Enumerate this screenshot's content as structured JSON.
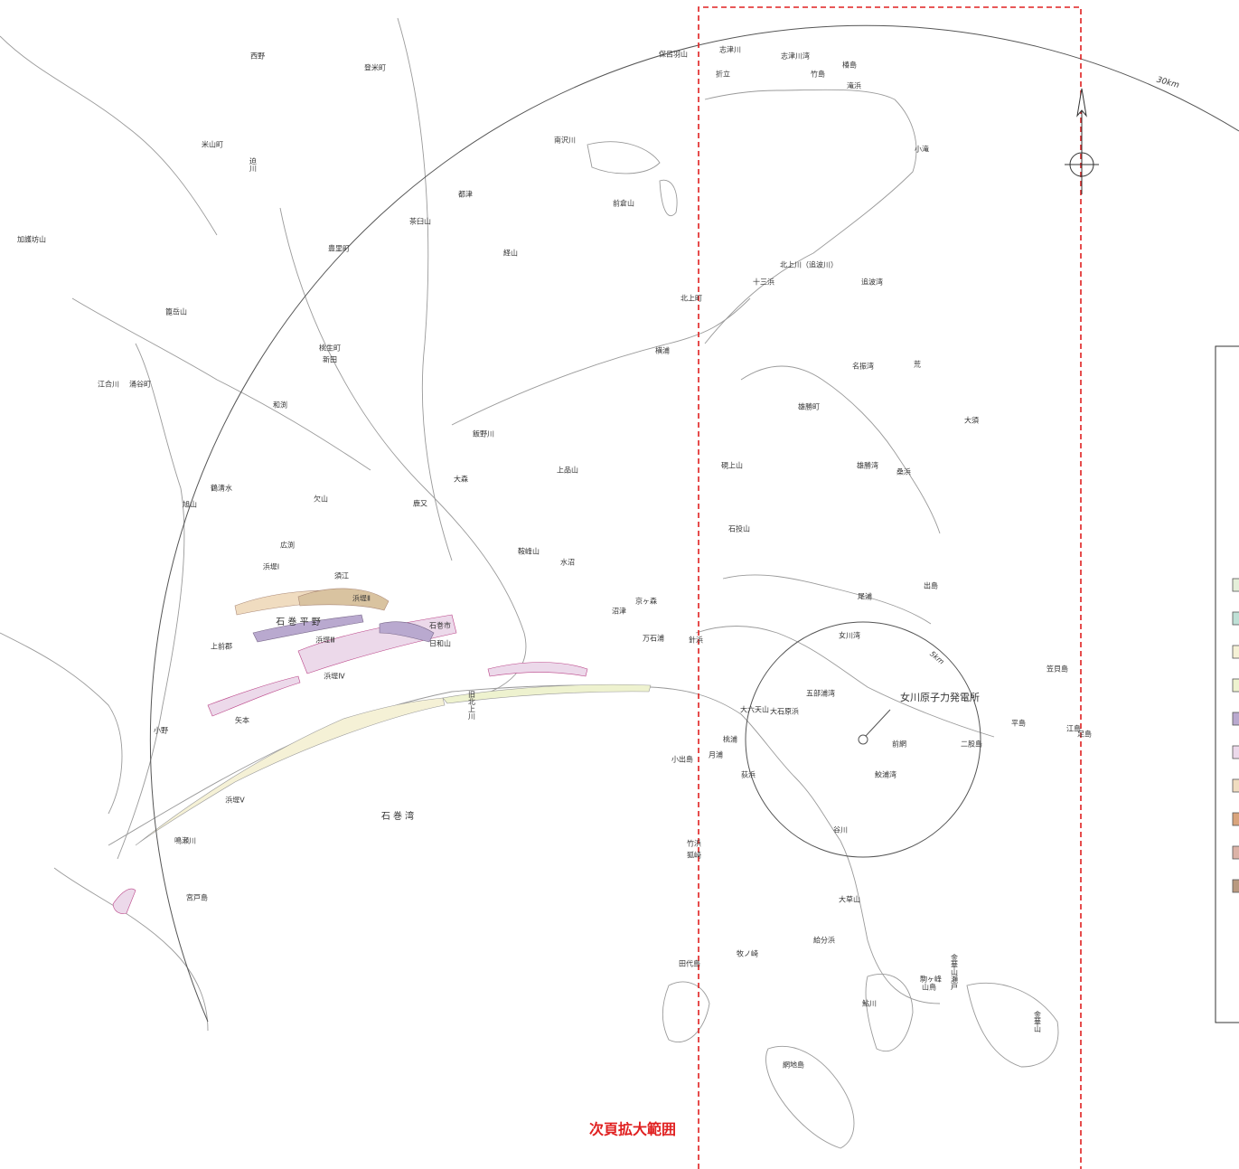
{
  "map": {
    "extent_label": "次頁拡大範囲",
    "scale_labels": {
      "outer": "30km",
      "inner": "5km"
    },
    "plant_label": "女川原子力発電所",
    "labels": [
      "西野",
      "登米町",
      "米山町",
      "加護坊山",
      "迫川",
      "南沢川",
      "保呂羽山",
      "志津川",
      "志津川湾",
      "椿島",
      "竹島",
      "折立",
      "滝浜",
      "小滝",
      "前倉山",
      "都津",
      "茶臼山",
      "豊里町",
      "篦岳山",
      "経山",
      "北上川（追波川）",
      "十三浜",
      "追波湾",
      "北上町",
      "桃生町",
      "新田",
      "江合川",
      "涌谷町",
      "和渕",
      "横浦",
      "名振湾",
      "荒",
      "飯野川",
      "雄勝町",
      "大須",
      "上品山",
      "硯上山",
      "雄勝湾",
      "桑浜",
      "大森",
      "鹿又",
      "鶴清水",
      "旭山",
      "欠山",
      "広渕",
      "石投山",
      "鞍峰山",
      "水沼",
      "須江",
      "出島",
      "尾浦",
      "京ヶ森",
      "石 巻 平 野",
      "石巻市",
      "沼津",
      "万石浦",
      "針浜",
      "女川湾",
      "上前郡",
      "日和山",
      "大六天山",
      "五部浦湾",
      "大石原浜",
      "笠貝島",
      "平島",
      "江島",
      "足島",
      "二股島",
      "前網",
      "矢本",
      "旧北上川",
      "桃浦",
      "小野",
      "月浦",
      "小出島",
      "荻浜",
      "鮫浦湾",
      "鳴瀬川",
      "石 巻 湾",
      "谷川",
      "竹浜",
      "狐崎",
      "宮戸島",
      "大草山",
      "給分浜",
      "牧ノ崎",
      "田代島",
      "駒ヶ峰",
      "金華山瀬戸",
      "山鳥",
      "鮎川",
      "網地島",
      "金華山",
      "浜堤Ⅰ",
      "浜堤Ⅱ",
      "浜堤Ⅲ",
      "浜堤Ⅳ",
      "浜堤Ⅴ"
    ],
    "legend_colors": [
      "#e4efd9",
      "#bfe0d6",
      "#f5f1d6",
      "#eef2cf",
      "#b9a9cf",
      "#ecd9ea",
      "#f0dcc0",
      "#d9a47c",
      "#dcb3a7",
      "#b99a80"
    ]
  }
}
